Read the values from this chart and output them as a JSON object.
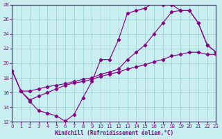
{
  "background_color": "#c8eef0",
  "line_color": "#880088",
  "grid_color": "#99cccc",
  "xlabel": "Windchill (Refroidissement éolien,°C)",
  "xlim": [
    0,
    23
  ],
  "ylim": [
    12,
    28
  ],
  "xticks": [
    0,
    1,
    2,
    3,
    4,
    5,
    6,
    7,
    8,
    9,
    10,
    11,
    12,
    13,
    14,
    15,
    16,
    17,
    18,
    19,
    20,
    21,
    22,
    23
  ],
  "yticks": [
    12,
    14,
    16,
    18,
    20,
    22,
    24,
    26,
    28
  ],
  "line1_x": [
    0,
    1,
    2,
    3,
    4,
    5,
    6,
    7,
    8,
    9,
    10,
    11,
    12,
    13,
    14,
    15,
    16,
    17,
    18,
    19,
    20,
    21,
    22,
    23
  ],
  "line1_y": [
    19.0,
    16.2,
    14.8,
    13.5,
    13.2,
    12.8,
    12.1,
    13.0,
    15.3,
    17.5,
    20.5,
    20.5,
    23.2,
    26.8,
    27.2,
    27.5,
    28.3,
    28.0,
    28.0,
    27.2,
    27.2,
    25.5,
    22.5,
    21.5
  ],
  "line2_x": [
    0,
    1,
    2,
    3,
    4,
    5,
    6,
    7,
    8,
    9,
    10,
    11,
    12,
    13,
    14,
    15,
    16,
    17,
    18,
    19,
    20,
    21,
    22,
    23
  ],
  "line2_y": [
    19.0,
    16.2,
    16.2,
    16.5,
    16.8,
    17.0,
    17.2,
    17.5,
    17.8,
    18.0,
    18.5,
    18.8,
    19.2,
    20.5,
    21.5,
    22.5,
    24.0,
    25.5,
    27.0,
    27.2,
    27.2,
    25.5,
    22.5,
    21.5
  ],
  "line3_x": [
    0,
    1,
    2,
    3,
    4,
    5,
    6,
    7,
    8,
    9,
    10,
    11,
    12,
    13,
    14,
    15,
    16,
    17,
    18,
    19,
    20,
    21,
    22,
    23
  ],
  "line3_y": [
    19.0,
    16.2,
    15.0,
    15.5,
    16.0,
    16.5,
    17.0,
    17.3,
    17.5,
    17.8,
    18.2,
    18.5,
    18.8,
    19.2,
    19.5,
    19.8,
    20.2,
    20.5,
    21.0,
    21.2,
    21.5,
    21.5,
    21.2,
    21.2
  ]
}
